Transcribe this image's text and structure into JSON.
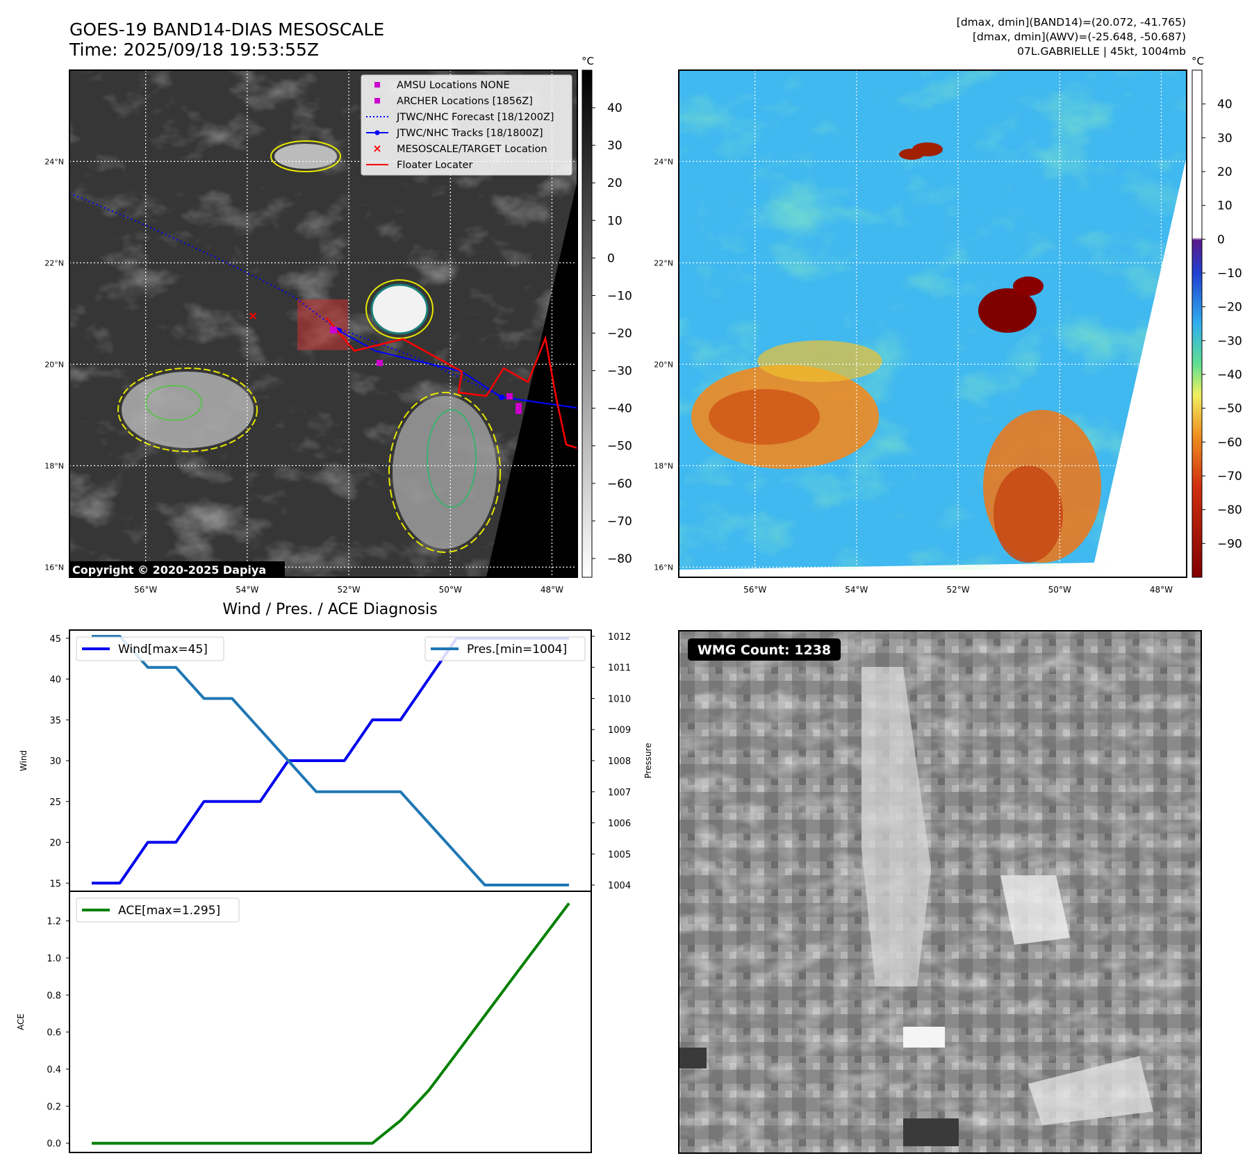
{
  "header": {
    "title": "GOES-19 BAND14-DIAS MESOSCALE",
    "time": "Time: 2025/09/18 19:53:55Z",
    "stats_line1": "[dmax, dmin](BAND14)=(20.072, -41.765)",
    "stats_line2": "[dmax, dmin](AWV)=(-25.648, -50.687)",
    "stats_line3": "07L.GABRIELLE | 45kt, 1004mb"
  },
  "map_axes": {
    "lat_labels": [
      "24°N",
      "22°N",
      "20°N",
      "18°N",
      "16°N"
    ],
    "lat_values": [
      24,
      22,
      20,
      18,
      16
    ],
    "lon_labels": [
      "56°W",
      "54°W",
      "52°W",
      "50°W",
      "48°W"
    ],
    "lon_values": [
      -56,
      -54,
      -52,
      -50,
      -48
    ],
    "lon_range": [
      -57.5,
      -47.5
    ],
    "lat_range": [
      15.8,
      25.8
    ]
  },
  "ir_panel": {
    "copyright": "Copyright © 2020-2025 Dapiya",
    "colorbar_unit": "°C",
    "colorbar_ticks": [
      "40",
      "30",
      "20",
      "10",
      "0",
      "−10",
      "−20",
      "−30",
      "−40",
      "−50",
      "−60",
      "−70",
      "−80"
    ],
    "colorbar_values": [
      40,
      30,
      20,
      10,
      0,
      -10,
      -20,
      -30,
      -40,
      -50,
      -60,
      -70,
      -80
    ],
    "colorbar_range": [
      -85,
      50
    ],
    "legend": [
      {
        "label": "AMSU Locations NONE",
        "color": "#cc00cc",
        "marker": "square"
      },
      {
        "label": "ARCHER Locations [1856Z]",
        "color": "#cc00cc",
        "marker": "square"
      },
      {
        "label": "JTWC/NHC Forecast [18/1200Z]",
        "color": "#0000ff",
        "marker": "dotted-line"
      },
      {
        "label": "JTWC/NHC Tracks [18/1800Z]",
        "color": "#0000ff",
        "marker": "line-dot"
      },
      {
        "label": "MESOSCALE/TARGET Location",
        "color": "#ff0000",
        "marker": "x"
      },
      {
        "label": "Floater Locater",
        "color": "#ff0000",
        "marker": "line"
      }
    ]
  },
  "wv_panel": {
    "colorbar_unit": "°C",
    "colorbar_ticks": [
      "40",
      "30",
      "20",
      "10",
      "0",
      "−10",
      "−20",
      "−30",
      "−40",
      "−50",
      "−60",
      "−70",
      "−80",
      "−90"
    ],
    "colorbar_values": [
      40,
      30,
      20,
      10,
      0,
      -10,
      -20,
      -30,
      -40,
      -50,
      -60,
      -70,
      -80,
      -90
    ],
    "colorbar_range": [
      -100,
      50
    ]
  },
  "chart_data": [
    {
      "type": "line",
      "title": "Wind / Pres. / ACE Diagnosis",
      "x": [
        0,
        1,
        2,
        3,
        4,
        5,
        6,
        7,
        8,
        9,
        10,
        11,
        12,
        13,
        14,
        15,
        16,
        17
      ],
      "ylabel": "Wind",
      "y2label": "Pressure",
      "ylim": [
        14.0,
        46.0
      ],
      "y2lim": [
        1003.8,
        1012.2
      ],
      "yticks": [
        15,
        20,
        25,
        30,
        35,
        40,
        45
      ],
      "y2ticks": [
        1004,
        1005,
        1006,
        1007,
        1008,
        1009,
        1010,
        1011,
        1012
      ],
      "series": [
        {
          "name": "Wind[max=45]",
          "color": "#0000ee",
          "axis": "left",
          "values": [
            15,
            15,
            20,
            20,
            25,
            25,
            25,
            30,
            30,
            30,
            35,
            35,
            40,
            45,
            45,
            45,
            45,
            45
          ]
        },
        {
          "name": "Pres.[min=1004]",
          "color": "#1f77b4",
          "axis": "right",
          "values": [
            1012,
            1012,
            1011,
            1011,
            1010,
            1010,
            1009,
            1008,
            1007,
            1007,
            1007,
            1007,
            1006,
            1005,
            1004,
            1004,
            1004,
            1004
          ]
        }
      ]
    },
    {
      "type": "line",
      "x": [
        0,
        1,
        2,
        3,
        4,
        5,
        6,
        7,
        8,
        9,
        10,
        11,
        12,
        13,
        14,
        15,
        16,
        17
      ],
      "ylabel": "ACE",
      "ylim": [
        -0.05,
        1.36
      ],
      "yticks": [
        "0.0",
        "0.2",
        "0.4",
        "0.6",
        "0.8",
        "1.0",
        "1.2"
      ],
      "ytick_values": [
        0,
        0.2,
        0.4,
        0.6,
        0.8,
        1.0,
        1.2
      ],
      "series": [
        {
          "name": "ACE[max=1.295]",
          "color": "#008000",
          "values": [
            0,
            0,
            0,
            0,
            0,
            0,
            0,
            0,
            0,
            0,
            0,
            0.122,
            0.284,
            0.486,
            0.689,
            0.892,
            1.094,
            1.295
          ]
        }
      ]
    }
  ],
  "wmg_panel": {
    "label": "WMG Count: 1238"
  }
}
